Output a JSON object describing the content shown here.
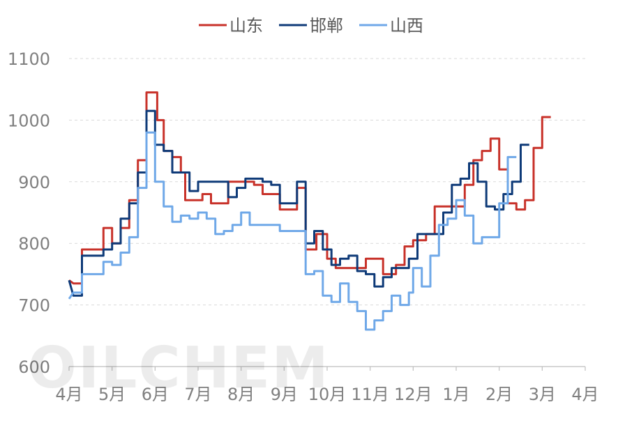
{
  "watermark": "OILCHEM",
  "chart_data": {
    "type": "line",
    "title": "",
    "xlabel": "",
    "ylabel": "",
    "ylim": [
      600,
      1100
    ],
    "yticks": [
      600,
      700,
      800,
      900,
      1000,
      1100
    ],
    "x_months": [
      "4月",
      "5月",
      "6月",
      "7月",
      "8月",
      "9月",
      "10月",
      "11月",
      "12月",
      "1月",
      "2月",
      "3月",
      "4月"
    ],
    "grid": true,
    "legend_position": "top",
    "series": [
      {
        "name": "山东",
        "color": "#c8322a",
        "points": [
          [
            0.0,
            740
          ],
          [
            0.1,
            735
          ],
          [
            0.3,
            735
          ],
          [
            0.3,
            790
          ],
          [
            0.8,
            790
          ],
          [
            0.8,
            825
          ],
          [
            1.0,
            825
          ],
          [
            1.0,
            800
          ],
          [
            1.2,
            800
          ],
          [
            1.2,
            825
          ],
          [
            1.4,
            825
          ],
          [
            1.4,
            870
          ],
          [
            1.6,
            870
          ],
          [
            1.6,
            935
          ],
          [
            1.8,
            935
          ],
          [
            1.8,
            1045
          ],
          [
            2.05,
            1045
          ],
          [
            2.05,
            1000
          ],
          [
            2.2,
            1000
          ],
          [
            2.2,
            950
          ],
          [
            2.4,
            950
          ],
          [
            2.4,
            940
          ],
          [
            2.6,
            940
          ],
          [
            2.6,
            915
          ],
          [
            2.7,
            915
          ],
          [
            2.7,
            870
          ],
          [
            3.1,
            870
          ],
          [
            3.1,
            880
          ],
          [
            3.3,
            880
          ],
          [
            3.3,
            865
          ],
          [
            3.7,
            865
          ],
          [
            3.7,
            900
          ],
          [
            4.3,
            900
          ],
          [
            4.3,
            895
          ],
          [
            4.5,
            895
          ],
          [
            4.5,
            880
          ],
          [
            4.9,
            880
          ],
          [
            4.9,
            855
          ],
          [
            5.3,
            855
          ],
          [
            5.3,
            890
          ],
          [
            5.5,
            890
          ],
          [
            5.5,
            790
          ],
          [
            5.75,
            790
          ],
          [
            5.75,
            815
          ],
          [
            6.0,
            815
          ],
          [
            6.0,
            775
          ],
          [
            6.2,
            775
          ],
          [
            6.2,
            760
          ],
          [
            6.9,
            760
          ],
          [
            6.9,
            775
          ],
          [
            7.3,
            775
          ],
          [
            7.3,
            750
          ],
          [
            7.6,
            750
          ],
          [
            7.6,
            765
          ],
          [
            7.8,
            765
          ],
          [
            7.8,
            795
          ],
          [
            8.0,
            795
          ],
          [
            8.0,
            805
          ],
          [
            8.3,
            805
          ],
          [
            8.3,
            815
          ],
          [
            8.5,
            815
          ],
          [
            8.5,
            860
          ],
          [
            9.2,
            860
          ],
          [
            9.2,
            895
          ],
          [
            9.4,
            895
          ],
          [
            9.4,
            935
          ],
          [
            9.6,
            935
          ],
          [
            9.6,
            950
          ],
          [
            9.8,
            950
          ],
          [
            9.8,
            970
          ],
          [
            10.0,
            970
          ],
          [
            10.0,
            920
          ],
          [
            10.2,
            920
          ],
          [
            10.2,
            865
          ],
          [
            10.4,
            865
          ],
          [
            10.4,
            855
          ],
          [
            10.6,
            855
          ],
          [
            10.6,
            870
          ],
          [
            10.8,
            870
          ],
          [
            10.8,
            955
          ],
          [
            11.0,
            955
          ],
          [
            11.0,
            1005
          ],
          [
            11.2,
            1005
          ]
        ]
      },
      {
        "name": "邯郸",
        "color": "#0e3a78",
        "points": [
          [
            0.0,
            740
          ],
          [
            0.1,
            715
          ],
          [
            0.3,
            715
          ],
          [
            0.3,
            780
          ],
          [
            0.8,
            780
          ],
          [
            0.8,
            790
          ],
          [
            1.0,
            790
          ],
          [
            1.0,
            800
          ],
          [
            1.2,
            800
          ],
          [
            1.2,
            840
          ],
          [
            1.4,
            840
          ],
          [
            1.4,
            865
          ],
          [
            1.6,
            865
          ],
          [
            1.6,
            915
          ],
          [
            1.8,
            915
          ],
          [
            1.8,
            1015
          ],
          [
            2.0,
            1015
          ],
          [
            2.0,
            960
          ],
          [
            2.2,
            960
          ],
          [
            2.2,
            950
          ],
          [
            2.4,
            950
          ],
          [
            2.4,
            915
          ],
          [
            2.8,
            915
          ],
          [
            2.8,
            885
          ],
          [
            3.0,
            885
          ],
          [
            3.0,
            900
          ],
          [
            3.7,
            900
          ],
          [
            3.7,
            875
          ],
          [
            3.9,
            875
          ],
          [
            3.9,
            890
          ],
          [
            4.1,
            890
          ],
          [
            4.1,
            905
          ],
          [
            4.5,
            905
          ],
          [
            4.5,
            900
          ],
          [
            4.7,
            900
          ],
          [
            4.7,
            895
          ],
          [
            4.9,
            895
          ],
          [
            4.9,
            865
          ],
          [
            5.3,
            865
          ],
          [
            5.3,
            900
          ],
          [
            5.5,
            900
          ],
          [
            5.5,
            800
          ],
          [
            5.7,
            800
          ],
          [
            5.7,
            820
          ],
          [
            5.9,
            820
          ],
          [
            5.9,
            790
          ],
          [
            6.1,
            790
          ],
          [
            6.1,
            765
          ],
          [
            6.3,
            765
          ],
          [
            6.3,
            775
          ],
          [
            6.5,
            775
          ],
          [
            6.5,
            780
          ],
          [
            6.7,
            780
          ],
          [
            6.7,
            755
          ],
          [
            6.9,
            755
          ],
          [
            6.9,
            750
          ],
          [
            7.1,
            750
          ],
          [
            7.1,
            730
          ],
          [
            7.3,
            730
          ],
          [
            7.3,
            745
          ],
          [
            7.5,
            745
          ],
          [
            7.5,
            760
          ],
          [
            7.9,
            760
          ],
          [
            7.9,
            775
          ],
          [
            8.1,
            775
          ],
          [
            8.1,
            815
          ],
          [
            8.7,
            815
          ],
          [
            8.7,
            850
          ],
          [
            8.9,
            850
          ],
          [
            8.9,
            895
          ],
          [
            9.1,
            895
          ],
          [
            9.1,
            905
          ],
          [
            9.3,
            905
          ],
          [
            9.3,
            930
          ],
          [
            9.5,
            930
          ],
          [
            9.5,
            900
          ],
          [
            9.7,
            900
          ],
          [
            9.7,
            860
          ],
          [
            9.9,
            860
          ],
          [
            9.9,
            855
          ],
          [
            10.1,
            855
          ],
          [
            10.1,
            880
          ],
          [
            10.3,
            880
          ],
          [
            10.3,
            900
          ],
          [
            10.5,
            900
          ],
          [
            10.5,
            960
          ],
          [
            10.7,
            960
          ]
        ]
      },
      {
        "name": "山西",
        "color": "#6fa8e8",
        "points": [
          [
            0.0,
            710
          ],
          [
            0.1,
            720
          ],
          [
            0.3,
            720
          ],
          [
            0.3,
            750
          ],
          [
            0.8,
            750
          ],
          [
            0.8,
            770
          ],
          [
            1.0,
            770
          ],
          [
            1.0,
            765
          ],
          [
            1.2,
            765
          ],
          [
            1.2,
            785
          ],
          [
            1.4,
            785
          ],
          [
            1.4,
            810
          ],
          [
            1.6,
            810
          ],
          [
            1.6,
            890
          ],
          [
            1.8,
            890
          ],
          [
            1.8,
            980
          ],
          [
            2.0,
            980
          ],
          [
            2.0,
            900
          ],
          [
            2.2,
            900
          ],
          [
            2.2,
            860
          ],
          [
            2.4,
            860
          ],
          [
            2.4,
            835
          ],
          [
            2.6,
            835
          ],
          [
            2.6,
            845
          ],
          [
            2.8,
            845
          ],
          [
            2.8,
            840
          ],
          [
            3.0,
            840
          ],
          [
            3.0,
            850
          ],
          [
            3.2,
            850
          ],
          [
            3.2,
            840
          ],
          [
            3.4,
            840
          ],
          [
            3.4,
            815
          ],
          [
            3.6,
            815
          ],
          [
            3.6,
            820
          ],
          [
            3.8,
            820
          ],
          [
            3.8,
            830
          ],
          [
            4.0,
            830
          ],
          [
            4.0,
            850
          ],
          [
            4.2,
            850
          ],
          [
            4.2,
            830
          ],
          [
            4.9,
            830
          ],
          [
            4.9,
            820
          ],
          [
            5.5,
            820
          ],
          [
            5.5,
            750
          ],
          [
            5.7,
            750
          ],
          [
            5.7,
            755
          ],
          [
            5.9,
            755
          ],
          [
            5.9,
            715
          ],
          [
            6.1,
            715
          ],
          [
            6.1,
            705
          ],
          [
            6.3,
            705
          ],
          [
            6.3,
            735
          ],
          [
            6.5,
            735
          ],
          [
            6.5,
            705
          ],
          [
            6.7,
            705
          ],
          [
            6.7,
            690
          ],
          [
            6.9,
            690
          ],
          [
            6.9,
            660
          ],
          [
            7.1,
            660
          ],
          [
            7.1,
            675
          ],
          [
            7.3,
            675
          ],
          [
            7.3,
            690
          ],
          [
            7.5,
            690
          ],
          [
            7.5,
            715
          ],
          [
            7.7,
            715
          ],
          [
            7.7,
            700
          ],
          [
            7.9,
            700
          ],
          [
            7.9,
            720
          ],
          [
            8.0,
            720
          ],
          [
            8.0,
            760
          ],
          [
            8.2,
            760
          ],
          [
            8.2,
            730
          ],
          [
            8.4,
            730
          ],
          [
            8.4,
            780
          ],
          [
            8.6,
            780
          ],
          [
            8.6,
            830
          ],
          [
            8.8,
            830
          ],
          [
            8.8,
            840
          ],
          [
            9.0,
            840
          ],
          [
            9.0,
            870
          ],
          [
            9.2,
            870
          ],
          [
            9.2,
            845
          ],
          [
            9.4,
            845
          ],
          [
            9.4,
            800
          ],
          [
            9.6,
            800
          ],
          [
            9.6,
            810
          ],
          [
            10.0,
            810
          ],
          [
            10.0,
            865
          ],
          [
            10.2,
            865
          ],
          [
            10.2,
            940
          ],
          [
            10.4,
            940
          ]
        ]
      }
    ]
  }
}
